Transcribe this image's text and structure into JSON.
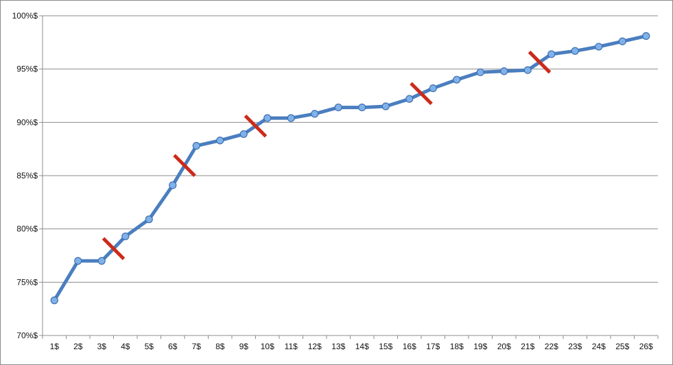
{
  "chart_data": {
    "type": "line",
    "title": "",
    "xlabel": "",
    "ylabel": "",
    "categories": [
      "1$",
      "2$",
      "3$",
      "4$",
      "5$",
      "6$",
      "7$",
      "8$",
      "9$",
      "10$",
      "11$",
      "12$",
      "13$",
      "14$",
      "15$",
      "16$",
      "17$",
      "18$",
      "19$",
      "20$",
      "21$",
      "22$",
      "23$",
      "24$",
      "25$",
      "26$"
    ],
    "y_tick_labels": [
      "70%$",
      "75%$",
      "80%$",
      "85%$",
      "90%$",
      "95%$",
      "100%$"
    ],
    "y_ticks": [
      70,
      75,
      80,
      85,
      90,
      95,
      100
    ],
    "ylim": [
      70,
      100
    ],
    "grid": true,
    "legend": "none",
    "series": [
      {
        "values": [
          73.3,
          77.0,
          77.0,
          79.3,
          80.9,
          84.1,
          87.8,
          88.3,
          88.9,
          90.4,
          90.4,
          90.8,
          91.4,
          91.4,
          91.5,
          92.2,
          93.2,
          94.0,
          94.7,
          94.8,
          94.9,
          96.4,
          96.7,
          97.1,
          97.6,
          98.1
        ],
        "color": "#4a7ebf",
        "marker_color": "#7fb2ea"
      }
    ],
    "break_markers": {
      "color": "#cc2a1a",
      "between": [
        [
          3,
          4
        ],
        [
          6,
          7
        ],
        [
          9,
          10
        ],
        [
          16,
          17
        ],
        [
          21,
          22
        ]
      ]
    }
  }
}
